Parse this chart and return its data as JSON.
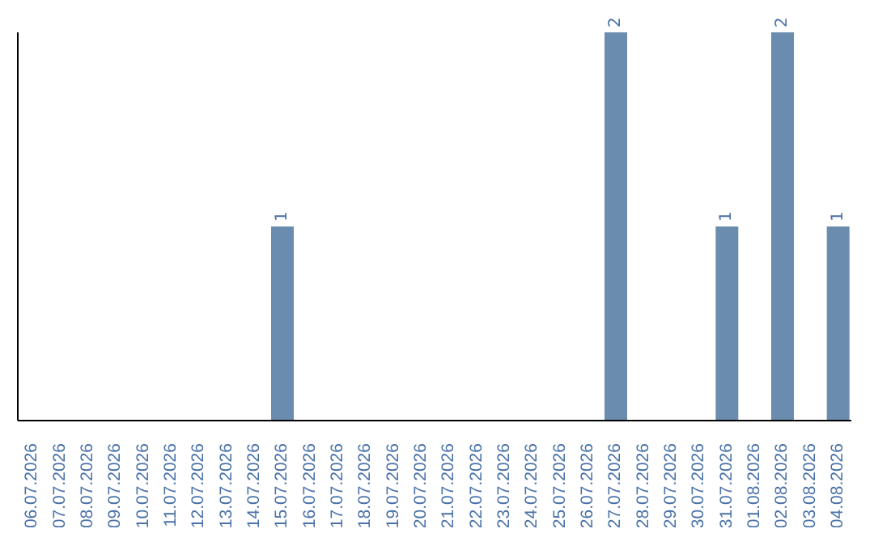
{
  "chart_data": {
    "type": "bar",
    "categories": [
      "06.07.2026",
      "07.07.2026",
      "08.07.2026",
      "09.07.2026",
      "10.07.2026",
      "11.07.2026",
      "12.07.2026",
      "13.07.2026",
      "14.07.2026",
      "15.07.2026",
      "16.07.2026",
      "17.07.2026",
      "18.07.2026",
      "19.07.2026",
      "20.07.2026",
      "21.07.2026",
      "22.07.2026",
      "23.07.2026",
      "24.07.2026",
      "25.07.2026",
      "26.07.2026",
      "27.07.2026",
      "28.07.2026",
      "29.07.2026",
      "30.07.2026",
      "31.07.2026",
      "01.08.2026",
      "02.08.2026",
      "03.08.2026",
      "04.08.2026"
    ],
    "values": [
      0,
      0,
      0,
      0,
      0,
      0,
      0,
      0,
      0,
      1,
      0,
      0,
      0,
      0,
      0,
      0,
      0,
      0,
      0,
      0,
      0,
      2,
      0,
      0,
      0,
      1,
      0,
      2,
      0,
      1
    ],
    "value_labels": [
      null,
      null,
      null,
      null,
      null,
      null,
      null,
      null,
      null,
      "1",
      null,
      null,
      null,
      null,
      null,
      null,
      null,
      null,
      null,
      null,
      null,
      "2",
      null,
      null,
      null,
      "1",
      null,
      "2",
      null,
      "1"
    ],
    "color": "#6a8caf",
    "ylim": [
      0,
      2
    ],
    "tick_labels": "x"
  }
}
